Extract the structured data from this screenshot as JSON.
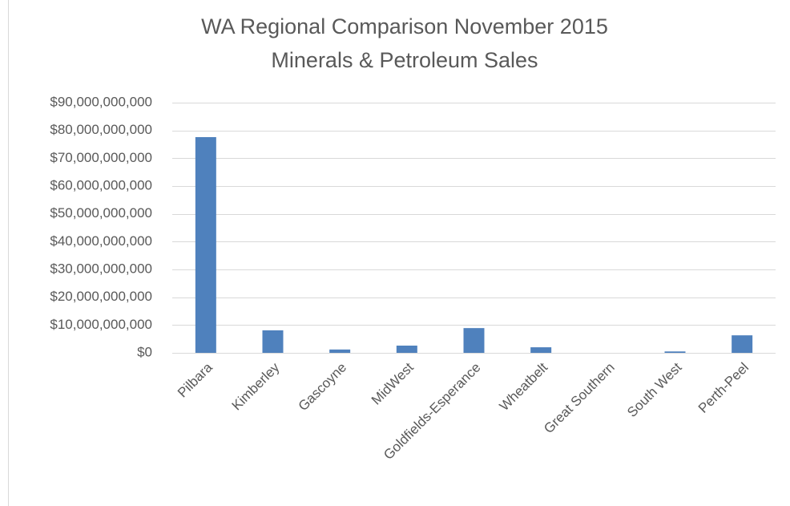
{
  "chart_data": {
    "type": "bar",
    "title": "WA Regional Comparison November 2015",
    "subtitle": "Minerals & Petroleum Sales",
    "categories": [
      "Pilbara",
      "Kimberley",
      "Gascoyne",
      "MidWest",
      "Goldfields-Esperance",
      "Wheatbelt",
      "Great Southern",
      "South West",
      "Perth-Peel"
    ],
    "values": [
      77600000000,
      8100000000,
      1200000000,
      2600000000,
      8900000000,
      2000000000,
      0,
      500000000,
      6300000000
    ],
    "color": "#4f81bd",
    "ylim": [
      0,
      90000000000
    ],
    "yticks": [
      {
        "value": 0,
        "label": "$0"
      },
      {
        "value": 10000000000,
        "label": "$10,000,000,000"
      },
      {
        "value": 20000000000,
        "label": "$20,000,000,000"
      },
      {
        "value": 30000000000,
        "label": "$30,000,000,000"
      },
      {
        "value": 40000000000,
        "label": "$40,000,000,000"
      },
      {
        "value": 50000000000,
        "label": "$50,000,000,000"
      },
      {
        "value": 60000000000,
        "label": "$60,000,000,000"
      },
      {
        "value": 70000000000,
        "label": "$70,000,000,000"
      },
      {
        "value": 80000000000,
        "label": "$80,000,000,000"
      },
      {
        "value": 90000000000,
        "label": "$90,000,000,000"
      }
    ],
    "grid": true
  }
}
